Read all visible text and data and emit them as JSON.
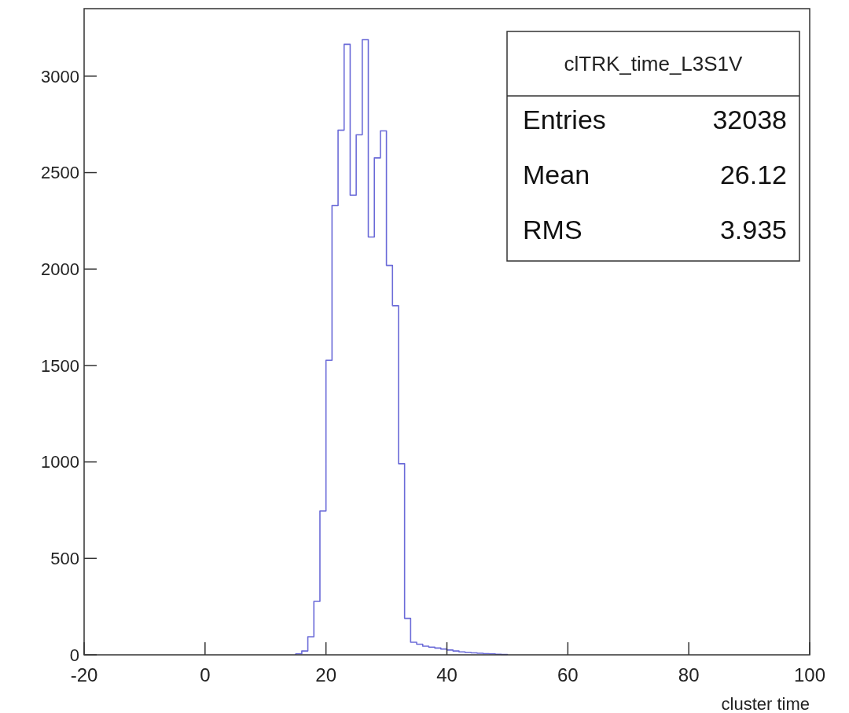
{
  "chart_data": {
    "type": "histogram",
    "title": "clTRK_time_L3S1V",
    "xlabel": "cluster time",
    "annotations": [
      "Entries",
      "32038",
      "Mean",
      "26.12",
      "RMS",
      "3.935"
    ],
    "bins": [
      15,
      16,
      17,
      18,
      19,
      20,
      21,
      22,
      23,
      24,
      25,
      26,
      27,
      28,
      29,
      30,
      31,
      32,
      33,
      34,
      35,
      36,
      37,
      38,
      39,
      40,
      41,
      42,
      43,
      44,
      45,
      46,
      47,
      48,
      49,
      50
    ],
    "values": [
      5,
      20,
      94,
      277,
      746,
      1527,
      2329,
      2720,
      3165,
      2383,
      2696,
      3189,
      2166,
      2576,
      2716,
      2019,
      1810,
      991,
      189,
      65,
      55,
      45,
      40,
      35,
      30,
      25,
      20,
      15,
      12,
      10,
      8,
      6,
      5,
      3,
      2
    ],
    "color": "#6b6bd8",
    "xlim": [
      -20,
      100
    ],
    "ylim": [
      0,
      3350
    ],
    "xticks": [
      -20,
      0,
      20,
      40,
      60,
      80,
      100
    ],
    "yticks": [
      0,
      500,
      1000,
      1500,
      2000,
      2500,
      3000
    ]
  }
}
